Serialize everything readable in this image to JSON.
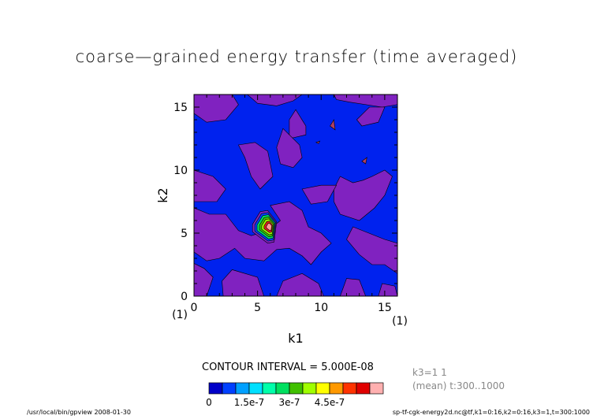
{
  "title": "coarse—grained energy transfer (time averaged)",
  "chart_data": {
    "type": "heatmap",
    "title": "coarse—grained energy transfer (time averaged)",
    "xlabel": "k1",
    "ylabel": "k2",
    "xlim": [
      0,
      16
    ],
    "ylim": [
      0,
      16
    ],
    "x_ticks": [
      "0",
      "5",
      "10",
      "15"
    ],
    "y_ticks": [
      "0",
      "5",
      "10",
      "15"
    ],
    "x_end_label": "(1)",
    "y_end_label": "(1)",
    "contour_interval_text": "CONTOUR INTERVAL = 5.000E-08",
    "levels_min": 0,
    "levels_step": 5e-08,
    "colorbar_tick_labels": [
      "0",
      "1.5e-7",
      "3e-7",
      "4.5e-7"
    ],
    "colorbar_colors": [
      "#0000c8",
      "#0040ff",
      "#00a0ff",
      "#00e0ff",
      "#00ffaa",
      "#00e060",
      "#40c000",
      "#a0ff00",
      "#ffff00",
      "#ff9900",
      "#ff3300",
      "#e00000",
      "#ffb0b0"
    ],
    "field_colors": {
      "low": "#0022ee",
      "mid": "#8022c0"
    },
    "peak": {
      "k1": 6,
      "k2": 5.5,
      "value": 5e-07
    }
  },
  "meta": {
    "info_line1": "k3=1 1",
    "info_line2": "(mean) t:300..1000",
    "footer_left": "/usr/local/bin/gpview  2008-01-30",
    "footer_right": "sp-tf-cgk-energy2d.nc@tf,k1=0:16,k2=0:16,k3=1,t=300:1000"
  }
}
